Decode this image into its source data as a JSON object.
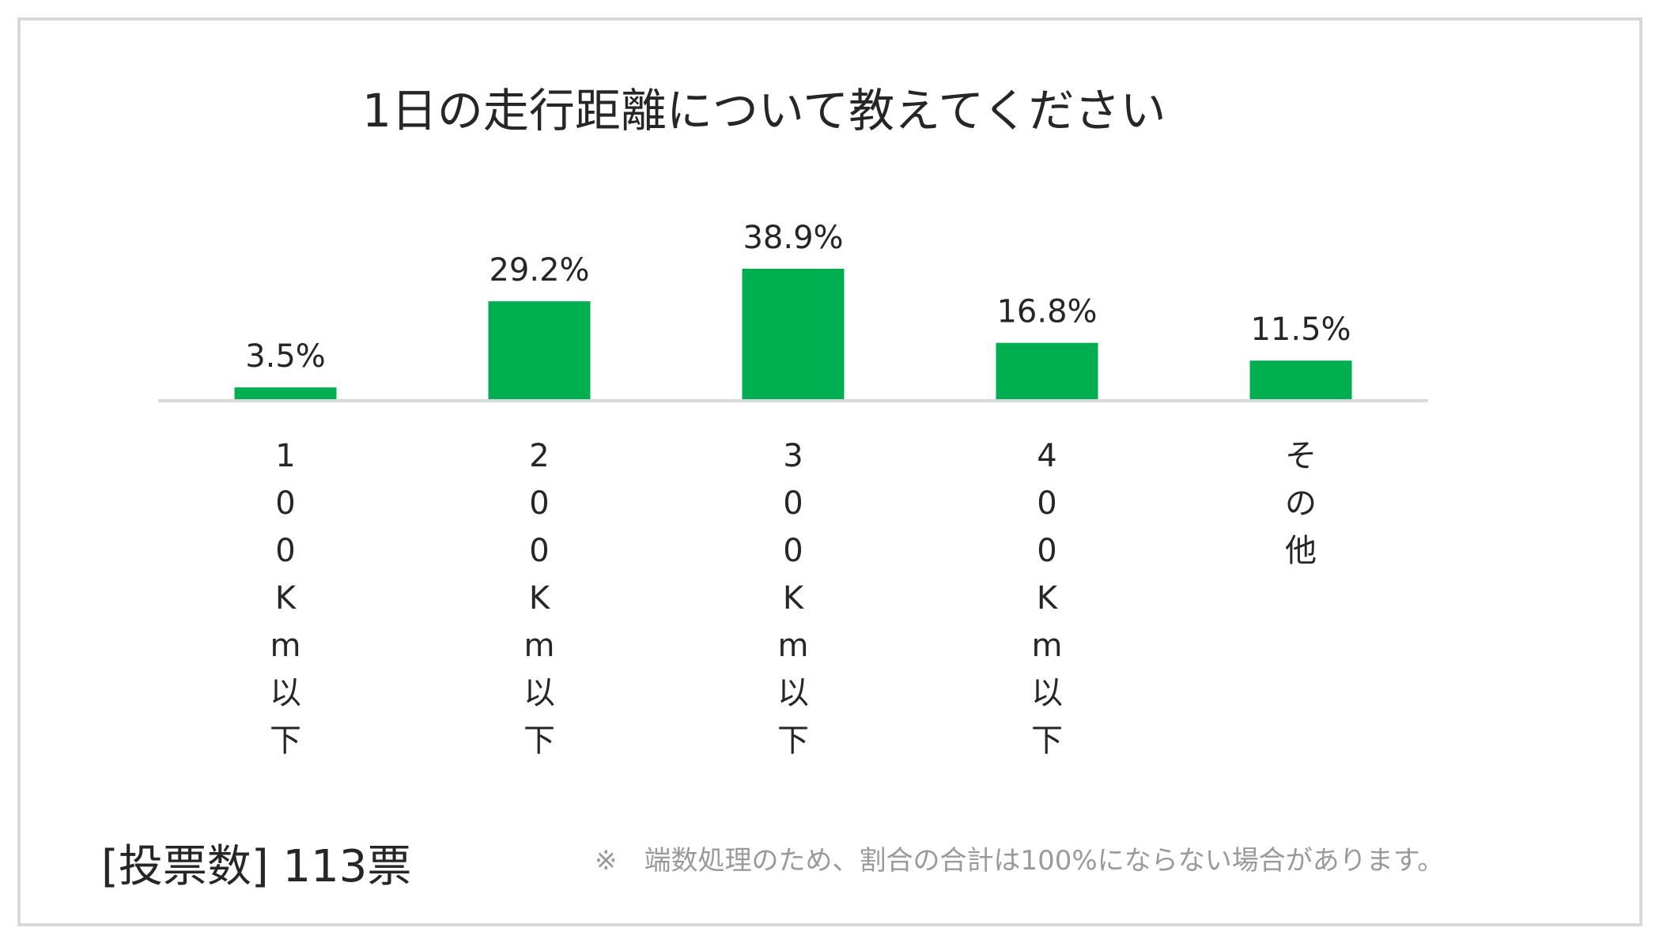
{
  "chart_data": {
    "type": "bar",
    "title": "1日の走行距離について教えてください",
    "categories": [
      "100Km以下",
      "200Km以下",
      "300Km以下",
      "400Km以下",
      "その他"
    ],
    "values": [
      3.5,
      29.2,
      38.9,
      16.8,
      11.5
    ],
    "data_labels": [
      "3.5%",
      "29.2%",
      "38.9%",
      "16.8%",
      "11.5%"
    ],
    "xlabel": "",
    "ylabel": "",
    "ylim": [
      0,
      40
    ],
    "grid": false,
    "legend": "none",
    "bar_color": "#00b050",
    "axis_color": "#d9d9d9"
  },
  "footer": {
    "vote_count": "[投票数] 113票",
    "note": "※　端数処理のため、割合の合計は100%にならない場合があります。"
  },
  "colors": {
    "text": "#262626",
    "note_text": "#9a9a9a",
    "frame_border": "#d9d9d9"
  }
}
